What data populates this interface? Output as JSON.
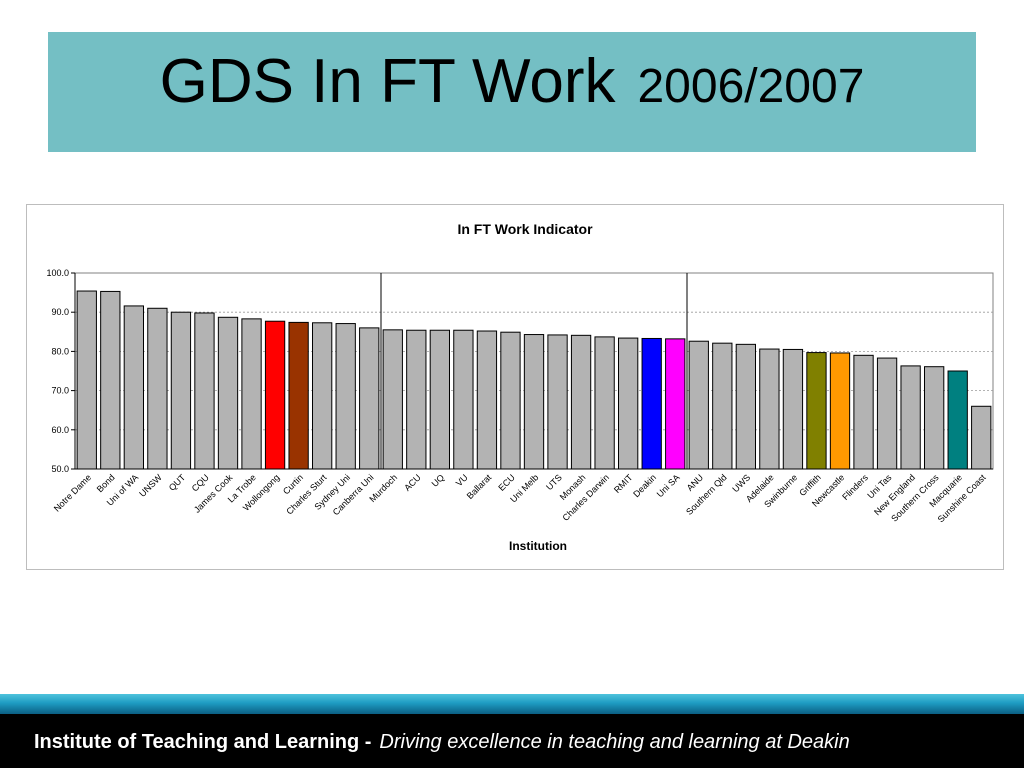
{
  "slide": {
    "title": "GDS In FT Work",
    "year": "2006/2007",
    "footer_org": "Institute of Teaching and Learning -",
    "footer_tagline": "Driving excellence in teaching and learning at Deakin"
  },
  "colors": {
    "title_bg": "#74BFC4",
    "default_bar": "#B3B3B3",
    "bar_outline": "#000000"
  },
  "chart_data": {
    "type": "bar",
    "title": "In FT Work Indicator",
    "xlabel": "Institution",
    "ylabel": "",
    "ylim": [
      50,
      100
    ],
    "yticks": [
      "50.0",
      "60.0",
      "70.0",
      "80.0",
      "90.0",
      "100.0"
    ],
    "grid": true,
    "legend": "none",
    "categories": [
      "Notre Dame",
      "Bond",
      "Uni of WA",
      "UNSW",
      "QUT",
      "CQU",
      "James Cook",
      "La Trobe",
      "Wollongong",
      "Curtin",
      "Charles Sturt",
      "Sydney Uni",
      "Canberra Uni",
      "Murdoch",
      "ACU",
      "UQ",
      "VU",
      "Ballarat",
      "ECU",
      "Uni Melb",
      "UTS",
      "Monash",
      "Charles Darwin",
      "RMIT",
      "Deakin",
      "Uni SA",
      "ANU",
      "Southern Qld",
      "UWS",
      "Adelaide",
      "Swinburne",
      "Griffith",
      "Newcastle",
      "Flinders",
      "Uni Tas",
      "New England",
      "Southern Cross",
      "Macquarie",
      "Sunshine Coast"
    ],
    "values": [
      95.4,
      95.3,
      91.6,
      91.0,
      90.0,
      89.8,
      88.7,
      88.3,
      87.7,
      87.4,
      87.3,
      87.1,
      86.0,
      85.5,
      85.4,
      85.4,
      85.4,
      85.2,
      84.9,
      84.3,
      84.2,
      84.1,
      83.7,
      83.4,
      83.3,
      83.2,
      82.6,
      82.1,
      81.8,
      80.6,
      80.5,
      79.7,
      79.6,
      79.0,
      78.3,
      76.3,
      76.1,
      75.0,
      66.0
    ],
    "highlights": {
      "Wollongong": "#FF0000",
      "Curtin": "#993300",
      "Deakin": "#0000FF",
      "Uni SA": "#FF00FF",
      "Griffith": "#808000",
      "Newcastle": "#FF9900",
      "Macquarie": "#008080"
    },
    "dividers_after": [
      "Canberra Uni",
      "Uni SA"
    ]
  }
}
